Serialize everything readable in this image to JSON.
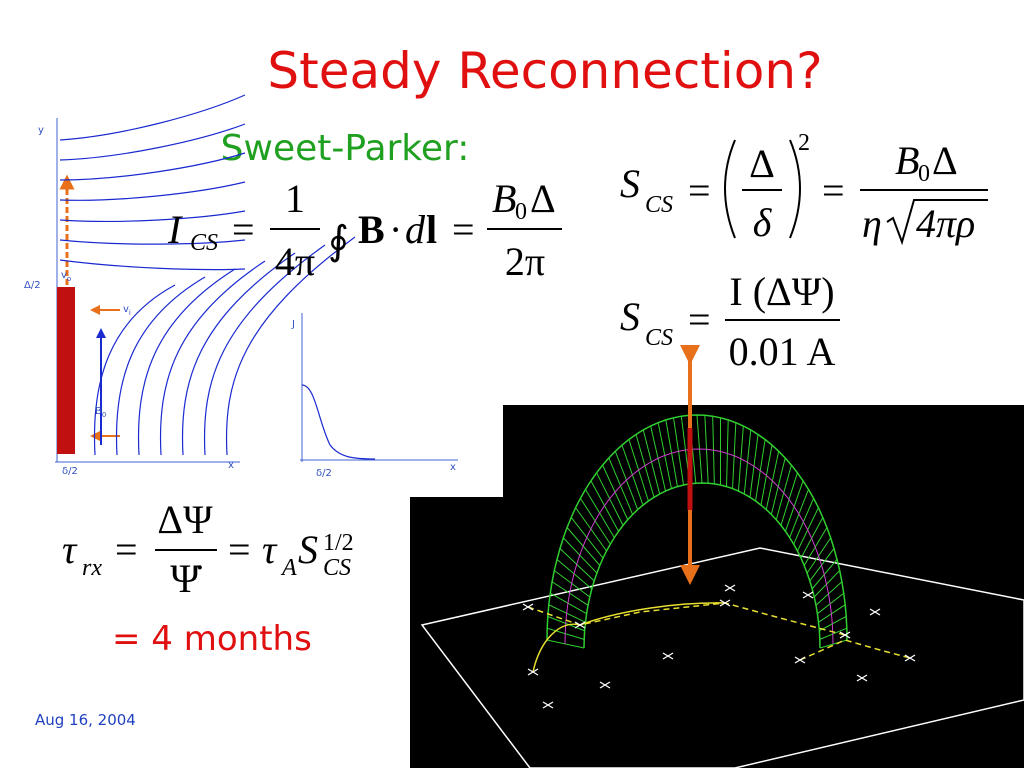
{
  "title": "Steady Reconnection?",
  "subtitle": "Sweet-Parker:",
  "date": "Aug 16, 2004",
  "result": "= 4 months",
  "diagram_labels": {
    "y_axis": "y",
    "x_axis": "x",
    "half_width": "Δ/2",
    "half_thickness": "δ/2",
    "outflow": "v",
    "outflow_sub": "o",
    "inflow": "v",
    "inflow_sub": "i",
    "field": "B",
    "field_sub": "0",
    "current_axis": "J",
    "current_x_axis": "x",
    "current_half_thickness": "δ/2"
  },
  "equations": {
    "current": {
      "lhs": "I",
      "lhs_sub": "CS",
      "eq1": "=",
      "num1": "1",
      "den1": "4π",
      "integral": "∮",
      "integrand_b": "B",
      "dot": "·",
      "integrand_d": "d",
      "integrand_l": "l",
      "eq2": "=",
      "num2": "B",
      "num2_sub": "0",
      "num2_tail": "Δ",
      "den2": "2π"
    },
    "lundquist": {
      "lhs": "S",
      "lhs_sub": "CS",
      "eq1": "=",
      "num1": "Δ",
      "den1": "δ",
      "power": "2",
      "eq2": "=",
      "num2": "B",
      "num2_sub": "0",
      "num2_tail": "Δ",
      "den2_eta": "η",
      "den2_root": "4πρ"
    },
    "lundquist_current": {
      "lhs": "S",
      "lhs_sub": "CS",
      "eq": "=",
      "num": "I (ΔΨ)",
      "den": "0.01 A"
    },
    "timescale": {
      "lhs": "τ",
      "lhs_sub": "rx",
      "eq1": "=",
      "num": "ΔΨ",
      "den": "Ψ̇",
      "eq2": "=",
      "tau": "τ",
      "tau_sub": "A",
      "s": "S",
      "s_sub": "CS",
      "s_sup": "1/2"
    }
  }
}
